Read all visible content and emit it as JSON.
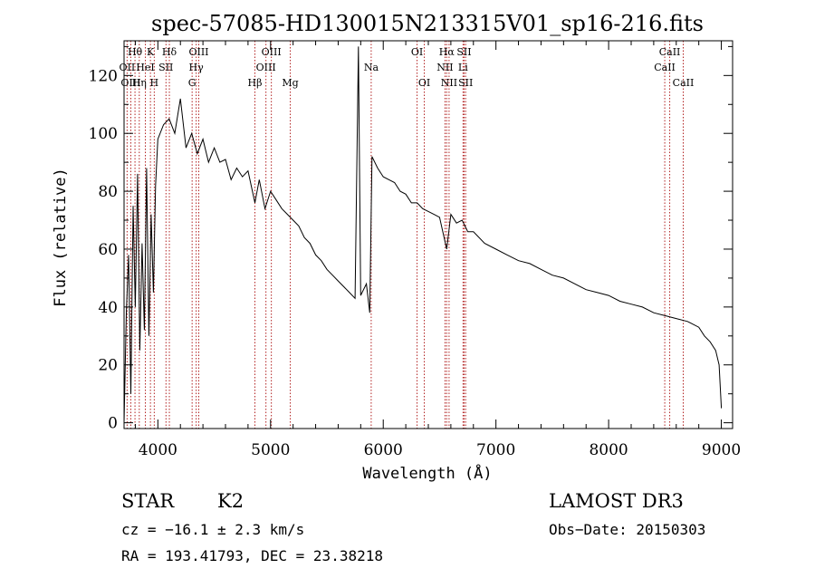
{
  "chart_data": {
    "type": "line",
    "title": "spec-57085-HD130015N213315V01_sp16-216.fits",
    "xlabel": "Wavelength (Å)",
    "ylabel": "Flux (relative)",
    "xlim": [
      3700,
      9100
    ],
    "ylim": [
      -2,
      132
    ],
    "xticks": [
      4000,
      5000,
      6000,
      7000,
      8000,
      9000
    ],
    "yticks": [
      0,
      20,
      40,
      60,
      80,
      100,
      120
    ],
    "xtick_labels": [
      "4000",
      "5000",
      "6000",
      "7000",
      "8000",
      "9000"
    ],
    "ytick_labels": [
      "0",
      "20",
      "40",
      "60",
      "80",
      "100",
      "120"
    ],
    "grid": false,
    "line_color": "#000000",
    "marker_color": "#b22222",
    "series": [
      {
        "x": [
          3700,
          3720,
          3740,
          3760,
          3780,
          3800,
          3820,
          3840,
          3860,
          3880,
          3900,
          3920,
          3940,
          3960,
          3980,
          4000,
          4050,
          4100,
          4150,
          4200,
          4250,
          4300,
          4350,
          4400,
          4450,
          4500,
          4550,
          4600,
          4650,
          4700,
          4750,
          4800,
          4861,
          4900,
          4950,
          5000,
          5050,
          5100,
          5150,
          5200,
          5250,
          5300,
          5350,
          5400,
          5450,
          5500,
          5550,
          5600,
          5650,
          5700,
          5750,
          5780,
          5800,
          5850,
          5880,
          5900,
          5950,
          6000,
          6050,
          6100,
          6150,
          6200,
          6250,
          6300,
          6350,
          6400,
          6450,
          6500,
          6563,
          6600,
          6650,
          6700,
          6750,
          6800,
          6900,
          7000,
          7100,
          7200,
          7300,
          7400,
          7500,
          7600,
          7700,
          7800,
          7900,
          8000,
          8100,
          8200,
          8300,
          8400,
          8500,
          8600,
          8700,
          8800,
          8850,
          8900,
          8950,
          8980,
          9000
        ],
        "y": [
          0,
          38,
          58,
          10,
          75,
          40,
          86,
          25,
          62,
          32,
          88,
          30,
          72,
          45,
          82,
          98,
          103,
          105,
          100,
          112,
          95,
          100,
          93,
          98,
          90,
          95,
          90,
          91,
          84,
          88,
          85,
          87,
          76,
          84,
          74,
          80,
          77,
          74,
          72,
          70,
          68,
          64,
          62,
          58,
          56,
          53,
          51,
          49,
          47,
          45,
          43,
          130,
          44,
          48,
          38,
          92,
          88,
          85,
          84,
          83,
          80,
          79,
          76,
          76,
          74,
          73,
          72,
          71,
          60,
          72,
          69,
          70,
          66,
          66,
          62,
          60,
          58,
          56,
          55,
          53,
          51,
          50,
          48,
          46,
          45,
          44,
          42,
          41,
          40,
          38,
          37,
          36,
          35,
          33,
          30,
          28,
          25,
          20,
          5
        ]
      }
    ],
    "line_markers": [
      {
        "label": "Hθ",
        "x": 3797,
        "row": 0
      },
      {
        "label": "OII",
        "x": 3727,
        "row": 1
      },
      {
        "label": "OIII",
        "x": 3760,
        "row": 2
      },
      {
        "label": "Hη",
        "x": 3835,
        "row": 2
      },
      {
        "label": "HeI",
        "x": 3889,
        "row": 1
      },
      {
        "label": "K",
        "x": 3934,
        "row": 0
      },
      {
        "label": "H",
        "x": 3968,
        "row": 2
      },
      {
        "label": "SII",
        "x": 4072,
        "row": 1
      },
      {
        "label": "Hδ",
        "x": 4102,
        "row": 0
      },
      {
        "label": "OIII",
        "x": 4363,
        "row": 0
      },
      {
        "label": "Hγ",
        "x": 4340,
        "row": 1
      },
      {
        "label": "G",
        "x": 4304,
        "row": 2
      },
      {
        "label": "Hβ",
        "x": 4861,
        "row": 2
      },
      {
        "label": "OIII",
        "x": 5007,
        "row": 0
      },
      {
        "label": "OIII",
        "x": 4959,
        "row": 1
      },
      {
        "label": "Mg",
        "x": 5175,
        "row": 2
      },
      {
        "label": "Na",
        "x": 5893,
        "row": 1
      },
      {
        "label": "OI",
        "x": 6300,
        "row": 0
      },
      {
        "label": "OI",
        "x": 6364,
        "row": 2
      },
      {
        "label": "Hα",
        "x": 6563,
        "row": 0
      },
      {
        "label": "NII",
        "x": 6548,
        "row": 1
      },
      {
        "label": "NII",
        "x": 6584,
        "row": 2
      },
      {
        "label": "SII",
        "x": 6717,
        "row": 0
      },
      {
        "label": "Li",
        "x": 6708,
        "row": 1
      },
      {
        "label": "SII",
        "x": 6731,
        "row": 2
      },
      {
        "label": "CaII",
        "x": 8542,
        "row": 0
      },
      {
        "label": "CaII",
        "x": 8498,
        "row": 1
      },
      {
        "label": "CaII",
        "x": 8662,
        "row": 2
      }
    ]
  },
  "info": {
    "class": "STAR",
    "subclass": "K2",
    "cz": "cz = −16.1 ± 2.3 km/s",
    "coords": "RA = 193.41793, DEC =  23.38218",
    "survey": "LAMOST DR3",
    "obs_date": "Obs−Date: 20150303"
  }
}
